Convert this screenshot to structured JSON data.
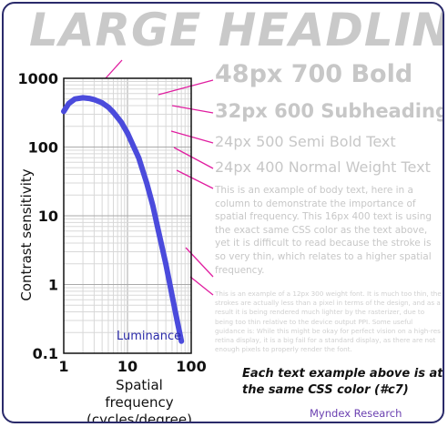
{
  "headline": "LARGE HEADLINE",
  "samples": {
    "s48": "48px 700 Bold",
    "s32": "32px 600 Subheading",
    "s24a": "24px 500 Semi Bold Text",
    "s24b": "24px 400 Normal Weight Text",
    "body16": "This is an example of body text, here in a column to demonstrate the importance of spatial frequency. This 16px 400 text is using the exact same CSS color as the text above, yet it is difficult to read because the stroke is so very thin, which relates to a higher spatial frequency.",
    "body12": "This is an example of a 12px 300 weight font. It is much too thin, the strokes are actually less than a pixel in terms of the design, and as a result it is being rendered much lighter by the rasterizer, due to being too thin relative to the device output PPI. Some useful guidance is: While this might be okay for perfect vision on a high-res retina display, it is a big fail for a standard display, as there are not enough pixels to properly render the font."
  },
  "note": "Each text example above is at the same CSS color (#c7)",
  "brand": "Myndex Research",
  "colors": {
    "curve": "#4b4bdc",
    "leader": "#e01ea0",
    "sample_text": "#c7c7c7"
  },
  "chart_data": {
    "type": "line",
    "xlabel": "Spatial frequency (cycles/degree)",
    "ylabel": "Contrast sensitivity",
    "x_scale": "log",
    "y_scale": "log",
    "xlim": [
      1,
      100
    ],
    "ylim": [
      0.1,
      1000
    ],
    "x_ticks": [
      "1",
      "10",
      "100"
    ],
    "y_ticks": [
      "1000",
      "100",
      "10",
      "1",
      "0.1"
    ],
    "grid": true,
    "series": [
      {
        "name": "Luminance",
        "x": [
          1.0,
          1.2,
          1.5,
          2.0,
          2.5,
          3.0,
          4.0,
          5.0,
          6.0,
          8.0,
          10,
          15,
          20,
          25,
          30,
          40,
          50,
          60,
          70
        ],
        "y": [
          330,
          430,
          500,
          520,
          510,
          490,
          440,
          380,
          320,
          230,
          160,
          70,
          30,
          14,
          6.5,
          2.0,
          0.7,
          0.3,
          0.15
        ]
      }
    ]
  }
}
